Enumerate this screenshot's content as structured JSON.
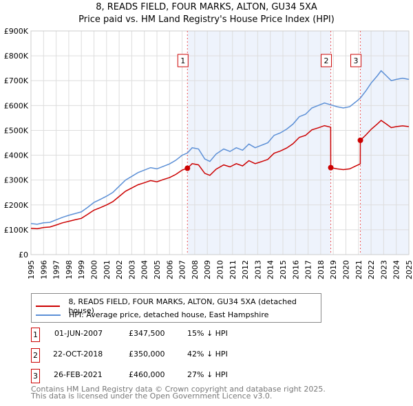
{
  "chart_data": {
    "type": "line",
    "title": "8, READS FIELD, FOUR MARKS, ALTON, GU34 5XA",
    "subtitle": "Price paid vs. HM Land Registry's House Price Index (HPI)",
    "xlim": [
      1995,
      2025
    ],
    "ylim": [
      0,
      900000
    ],
    "x_ticks": [
      "1995",
      "1996",
      "1997",
      "1998",
      "1999",
      "2000",
      "2001",
      "2002",
      "2003",
      "2004",
      "2005",
      "2006",
      "2007",
      "2008",
      "2009",
      "2010",
      "2011",
      "2012",
      "2013",
      "2014",
      "2015",
      "2016",
      "2017",
      "2018",
      "2019",
      "2020",
      "2021",
      "2022",
      "2023",
      "2024",
      "2025"
    ],
    "y_ticks": [
      {
        "v": 0,
        "l": "£0"
      },
      {
        "v": 100000,
        "l": "£100K"
      },
      {
        "v": 200000,
        "l": "£200K"
      },
      {
        "v": 300000,
        "l": "£300K"
      },
      {
        "v": 400000,
        "l": "£400K"
      },
      {
        "v": 500000,
        "l": "£500K"
      },
      {
        "v": 600000,
        "l": "£600K"
      },
      {
        "v": 700000,
        "l": "£700K"
      },
      {
        "v": 800000,
        "l": "£800K"
      },
      {
        "v": 900000,
        "l": "£900K"
      }
    ],
    "grid": true,
    "shaded_ranges": [
      [
        2007.42,
        2018.8
      ],
      [
        2021.15,
        2025
      ]
    ],
    "series": [
      {
        "name": "8, READS FIELD, FOUR MARKS, ALTON, GU34 5XA (detached house)",
        "color": "#cc0000",
        "x": [
          1995,
          1995.5,
          1996,
          1996.5,
          1997,
          1997.5,
          1998,
          1998.5,
          1999,
          1999.5,
          2000,
          2000.5,
          2001,
          2001.5,
          2002,
          2002.5,
          2003,
          2003.5,
          2004,
          2004.5,
          2005,
          2005.5,
          2006,
          2006.5,
          2007,
          2007.42,
          2007.8,
          2008.3,
          2008.8,
          2009.2,
          2009.7,
          2010.3,
          2010.8,
          2011.3,
          2011.8,
          2012.3,
          2012.8,
          2013.3,
          2013.8,
          2014.3,
          2014.8,
          2015.3,
          2015.8,
          2016.3,
          2016.8,
          2017.3,
          2017.8,
          2018.3,
          2018.79,
          2018.8,
          2019.3,
          2019.8,
          2020.3,
          2020.8,
          2021.14,
          2021.15,
          2021.6,
          2022,
          2022.5,
          2022.8,
          2023.2,
          2023.6,
          2024,
          2024.5,
          2025
        ],
        "values": [
          106000,
          104000,
          109000,
          111000,
          119000,
          128000,
          134000,
          140000,
          146000,
          162000,
          179000,
          189000,
          200000,
          213000,
          234000,
          255000,
          268000,
          281000,
          289000,
          298000,
          293000,
          302000,
          310000,
          323000,
          340000,
          347500,
          366000,
          361000,
          327000,
          319000,
          344000,
          361000,
          353000,
          366000,
          357000,
          378000,
          366000,
          374000,
          383000,
          408000,
          417000,
          429000,
          446000,
          472000,
          480000,
          502000,
          510000,
          519000,
          513000,
          350000,
          345000,
          342000,
          345000,
          357000,
          365000,
          460000,
          482000,
          504000,
          526000,
          540000,
          526000,
          511000,
          515000,
          518000,
          515000
        ]
      },
      {
        "name": "HPI: Average price, detached house, East Hampshire",
        "color": "#5b8fd6",
        "x": [
          1995,
          1995.5,
          1996,
          1996.5,
          1997,
          1997.5,
          1998,
          1998.5,
          1999,
          1999.5,
          2000,
          2000.5,
          2001,
          2001.5,
          2002,
          2002.5,
          2003,
          2003.5,
          2004,
          2004.5,
          2005,
          2005.5,
          2006,
          2006.5,
          2007,
          2007.42,
          2007.8,
          2008.3,
          2008.8,
          2009.2,
          2009.7,
          2010.3,
          2010.8,
          2011.3,
          2011.8,
          2012.3,
          2012.8,
          2013.3,
          2013.8,
          2014.3,
          2014.8,
          2015.3,
          2015.8,
          2016.3,
          2016.8,
          2017.3,
          2017.8,
          2018.3,
          2018.8,
          2019.3,
          2019.8,
          2020.3,
          2020.8,
          2021.15,
          2021.6,
          2022,
          2022.5,
          2022.8,
          2023.2,
          2023.6,
          2024,
          2024.5,
          2025
        ],
        "values": [
          125000,
          122000,
          128000,
          130000,
          140000,
          150000,
          158000,
          165000,
          172000,
          190000,
          210000,
          222000,
          235000,
          250000,
          275000,
          300000,
          315000,
          330000,
          340000,
          350000,
          345000,
          355000,
          365000,
          380000,
          400000,
          409000,
          430000,
          425000,
          385000,
          375000,
          405000,
          425000,
          415000,
          430000,
          420000,
          445000,
          430000,
          440000,
          450000,
          480000,
          490000,
          505000,
          525000,
          555000,
          565000,
          590000,
          600000,
          610000,
          603000,
          595000,
          590000,
          595000,
          615000,
          630000,
          660000,
          690000,
          720000,
          740000,
          720000,
          700000,
          705000,
          710000,
          705000
        ]
      }
    ],
    "sales": [
      {
        "label": "1",
        "x": 2007.42,
        "price": 347500,
        "date": "01-JUN-2007",
        "price_text": "£347,500",
        "hpi_text": "15% ↓ HPI"
      },
      {
        "label": "2",
        "x": 2018.8,
        "price": 350000,
        "date": "22-OCT-2018",
        "price_text": "£350,000",
        "hpi_text": "42% ↓ HPI"
      },
      {
        "label": "3",
        "x": 2021.15,
        "price": 460000,
        "date": "26-FEB-2021",
        "price_text": "£460,000",
        "hpi_text": "27% ↓ HPI"
      }
    ],
    "legend_position": "below"
  },
  "footer": {
    "line1": "Contains HM Land Registry data © Crown copyright and database right 2025.",
    "line2": "This data is licensed under the Open Government Licence v3.0."
  }
}
